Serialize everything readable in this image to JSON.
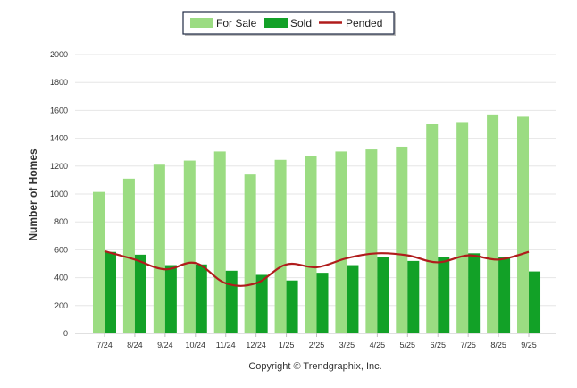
{
  "chart_data": {
    "type": "bar",
    "ylabel": "Number of Homes",
    "xlabel": "",
    "ylim": [
      0,
      2000
    ],
    "yticks": [
      0,
      200,
      400,
      600,
      800,
      1000,
      1200,
      1400,
      1600,
      1800,
      2000
    ],
    "grid": true,
    "legend": "top-center",
    "categories": [
      "7/24",
      "8/24",
      "9/24",
      "10/24",
      "11/24",
      "12/24",
      "1/25",
      "2/25",
      "3/25",
      "4/25",
      "5/25",
      "6/25",
      "7/25",
      "8/25",
      "9/25"
    ],
    "series": [
      {
        "name": "For Sale",
        "type": "bar",
        "color": "#9bdc82",
        "values": [
          1015,
          1110,
          1210,
          1240,
          1305,
          1140,
          1245,
          1270,
          1305,
          1320,
          1340,
          1500,
          1510,
          1565,
          1555
        ]
      },
      {
        "name": "Sold",
        "type": "bar",
        "color": "#12a127",
        "values": [
          585,
          565,
          490,
          495,
          450,
          420,
          380,
          435,
          490,
          545,
          520,
          545,
          575,
          545,
          445
        ]
      },
      {
        "name": "Pended",
        "type": "line",
        "color": "#b01c1c",
        "values": [
          590,
          530,
          460,
          505,
          360,
          360,
          495,
          475,
          540,
          575,
          560,
          510,
          560,
          530,
          585
        ]
      }
    ]
  },
  "footer": {
    "copyright": "Copyright © Trendgraphix, Inc."
  }
}
